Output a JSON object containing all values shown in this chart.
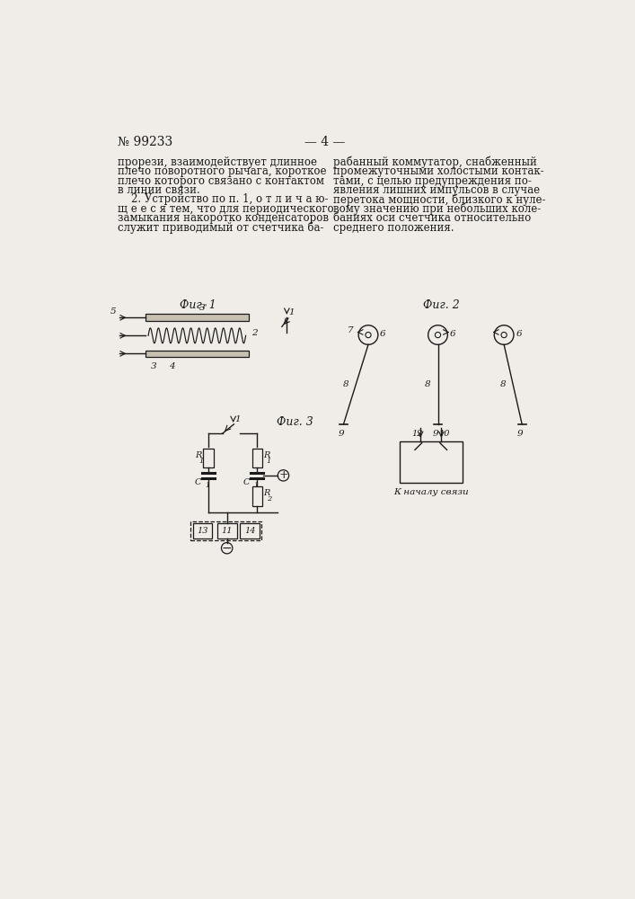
{
  "bg_color": "#f0ede8",
  "text_color": "#1a1a1a",
  "header_patent": "№ 99233",
  "header_page": "— 4 —",
  "fig1_label": "Фиг. 1",
  "fig2_label": "Фиг. 2",
  "fig3_label": "Фиг. 3",
  "text_left_lines": [
    "прорези, взаимодействует длинное",
    "плечо поворотного рычага, короткое",
    "плечо которого связано с контактом",
    "в линии связи.",
    "    2. Устройство по п. 1, о т л и ч а ю-",
    "щ е е с я тем, что для периодического",
    "замыкания накоротко конденсаторов",
    "служит приводимый от счетчика ба-"
  ],
  "text_right_lines": [
    "рабанный коммутатор, снабженный",
    "промежуточными холостыми контак-",
    "тами, с целью предупреждения по-",
    "явления лишних импульсов в случае",
    "перетока мощности, близкого к нуле-",
    "вому значению при небольших коле-",
    "баниях оси счетчика относительно",
    "среднего положения."
  ]
}
